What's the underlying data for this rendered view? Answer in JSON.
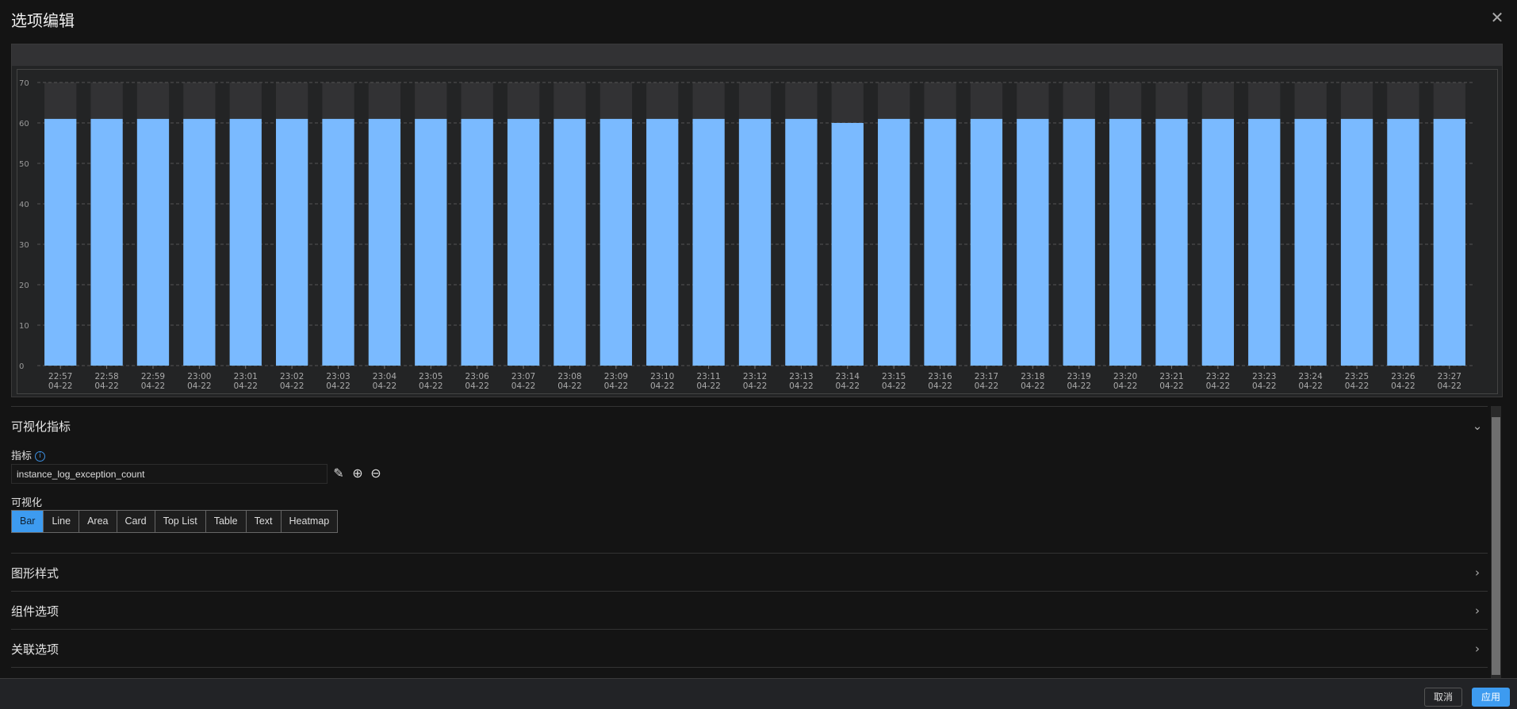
{
  "dialog": {
    "title": "选项编辑",
    "close_icon": "close-icon"
  },
  "chart_data": {
    "type": "bar",
    "categories": [
      "22:57\n04-22",
      "22:58\n04-22",
      "22:59\n04-22",
      "23:00\n04-22",
      "23:01\n04-22",
      "23:02\n04-22",
      "23:03\n04-22",
      "23:04\n04-22",
      "23:05\n04-22",
      "23:06\n04-22",
      "23:07\n04-22",
      "23:08\n04-22",
      "23:09\n04-22",
      "23:10\n04-22",
      "23:11\n04-22",
      "23:12\n04-22",
      "23:13\n04-22",
      "23:14\n04-22",
      "23:15\n04-22",
      "23:16\n04-22",
      "23:17\n04-22",
      "23:18\n04-22",
      "23:19\n04-22",
      "23:20\n04-22",
      "23:21\n04-22",
      "23:22\n04-22",
      "23:23\n04-22",
      "23:24\n04-22",
      "23:25\n04-22",
      "23:26\n04-22",
      "23:27\n04-22"
    ],
    "values": [
      61,
      61,
      61,
      61,
      61,
      61,
      61,
      61,
      61,
      61,
      61,
      61,
      61,
      61,
      61,
      61,
      61,
      60,
      61,
      61,
      61,
      61,
      61,
      61,
      61,
      61,
      61,
      61,
      61,
      61,
      61
    ],
    "ylim": [
      0,
      70
    ],
    "yticks": [
      0,
      10,
      20,
      30,
      40,
      50,
      60,
      70
    ],
    "grid": true,
    "background_bars": true,
    "bar_color": "#7abaff",
    "title": "",
    "xlabel": "",
    "ylabel": ""
  },
  "metrics_section": {
    "title": "可视化指标",
    "metric_label": "指标",
    "metric_value": "instance_log_exception_count",
    "viz_label": "可视化",
    "viz_options": [
      "Bar",
      "Line",
      "Area",
      "Card",
      "Top List",
      "Table",
      "Text",
      "Heatmap"
    ],
    "selected": "Bar"
  },
  "collapsed_sections": [
    "图形样式",
    "组件选项",
    "关联选项"
  ],
  "footer": {
    "cancel": "取消",
    "apply": "应用"
  },
  "colors": {
    "accent": "#3d9bf0",
    "bar": "#7abaff",
    "background": "#141414"
  }
}
